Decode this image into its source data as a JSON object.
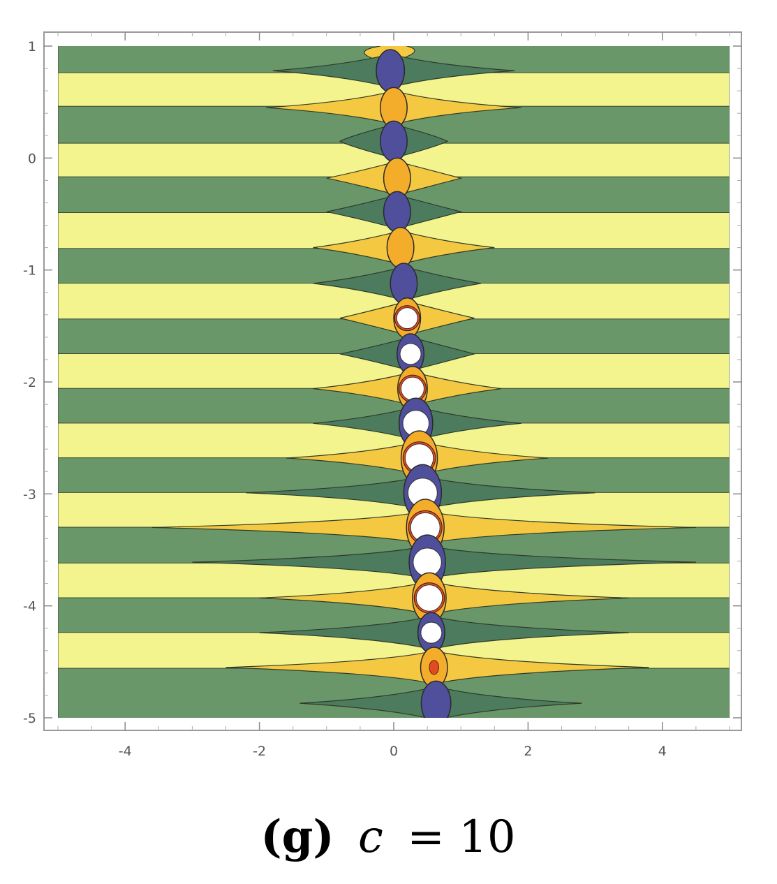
{
  "chart_data": {
    "type": "contour",
    "xlim": [
      -5,
      5
    ],
    "ylim": [
      -5,
      1
    ],
    "xticks": [
      -4,
      -2,
      0,
      2,
      4
    ],
    "xtick_labels": [
      "-4",
      "-2",
      "0",
      "2",
      "4"
    ],
    "yticks": [
      1,
      0,
      -1,
      -2,
      -3,
      -4,
      -5
    ],
    "ytick_labels": [
      "1",
      "0",
      "-1",
      "-2",
      "-3",
      "-4",
      "-5"
    ],
    "band_period": 0.625,
    "band_colors": {
      "light": "#f3f48d",
      "dark": "#69976a"
    },
    "lobe_colors": {
      "yellow_band": "#f4c841",
      "green_band": "#4c7b5e"
    },
    "core_colors": {
      "yellow_band": "#f4ac2b",
      "green_band": "#4f4f9c",
      "hole": "#ffffff",
      "hot_spot": "#e24a22"
    },
    "row_features": [
      {
        "y": 1.0,
        "band": "light",
        "cx": -0.1,
        "core": 0,
        "left": -0.2,
        "right": 0.2
      },
      {
        "y": 0.78,
        "band": "dark",
        "cx": -0.05,
        "core": 0.21,
        "left": -1.8,
        "right": 1.8
      },
      {
        "y": 0.45,
        "band": "light",
        "cx": 0.0,
        "core": 0.2,
        "left": -1.9,
        "right": 1.9
      },
      {
        "y": 0.15,
        "band": "dark",
        "cx": 0.0,
        "core": 0.2,
        "left": -0.8,
        "right": 0.8
      },
      {
        "y": -0.18,
        "band": "light",
        "cx": 0.05,
        "core": 0.2,
        "left": -1.0,
        "right": 1.0
      },
      {
        "y": -0.48,
        "band": "dark",
        "cx": 0.05,
        "core": 0.2,
        "left": -1.0,
        "right": 1.0
      },
      {
        "y": -0.8,
        "band": "light",
        "cx": 0.1,
        "core": 0.2,
        "left": -1.2,
        "right": 1.5
      },
      {
        "y": -1.12,
        "band": "dark",
        "cx": 0.15,
        "core": 0.2,
        "left": -1.2,
        "right": 1.3
      },
      {
        "y": -1.43,
        "band": "light",
        "cx": 0.2,
        "core": 0.2,
        "left": -0.8,
        "right": 1.2
      },
      {
        "y": -1.75,
        "band": "dark",
        "cx": 0.25,
        "core": 0.2,
        "left": -0.8,
        "right": 1.2
      },
      {
        "y": -2.06,
        "band": "light",
        "cx": 0.28,
        "core": 0.22,
        "left": -1.2,
        "right": 1.6
      },
      {
        "y": -2.37,
        "band": "dark",
        "cx": 0.33,
        "core": 0.25,
        "left": -1.2,
        "right": 1.9
      },
      {
        "y": -2.68,
        "band": "light",
        "cx": 0.38,
        "core": 0.27,
        "left": -1.6,
        "right": 2.3
      },
      {
        "y": -2.99,
        "band": "dark",
        "cx": 0.43,
        "core": 0.28,
        "left": -2.2,
        "right": 3.0
      },
      {
        "y": -3.3,
        "band": "light",
        "cx": 0.47,
        "core": 0.28,
        "left": -3.6,
        "right": 4.5
      },
      {
        "y": -3.61,
        "band": "dark",
        "cx": 0.5,
        "core": 0.27,
        "left": -3.0,
        "right": 4.5
      },
      {
        "y": -3.93,
        "band": "light",
        "cx": 0.53,
        "core": 0.25,
        "left": -2.0,
        "right": 3.5
      },
      {
        "y": -4.24,
        "band": "dark",
        "cx": 0.56,
        "core": 0.2,
        "left": -2.0,
        "right": 3.5
      },
      {
        "y": -4.55,
        "band": "light",
        "cx": 0.6,
        "core": 0.2,
        "left": -2.5,
        "right": 3.8
      },
      {
        "y": -4.87,
        "band": "dark",
        "cx": 0.63,
        "core": 0.22,
        "left": -1.4,
        "right": 2.8
      }
    ],
    "caption_label": "(g)",
    "caption_var": "c",
    "caption_eq": "= 10"
  }
}
